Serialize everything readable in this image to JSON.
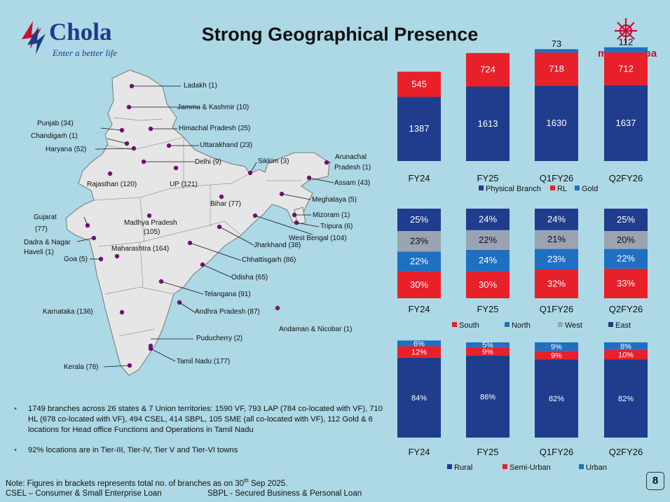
{
  "header": {
    "title": "Strong Geographical Presence",
    "logo_chola": "Chola",
    "logo_chola_tagline": "Enter a better life",
    "logo_murugappa": "murugappa"
  },
  "map": {
    "labels": [
      "Ladakh (1)",
      "Jammu & Kashmir (10)",
      "Punjab (34)",
      "Chandigarh (1)",
      "Haryana (52)",
      "Himachal Pradesh (25)",
      "Uttarakhand (23)",
      "Delhi (9)",
      "Rajasthan (120)",
      "UP (121)",
      "Sikkim (3)",
      "Arunachal",
      "Pradesh (1)",
      "Assam (43)",
      "Meghalaya (5)",
      "Bihar (77)",
      "Gujarat",
      "(77)",
      "Madhya Pradesh",
      "(105)",
      "Mizoram (1)",
      "Tripura (6)",
      "West Bengal (104)",
      "Dadra & Nagar",
      "Haveli (1)",
      "Jharkhand (38)",
      "Maharashtra (164)",
      "Goa (5)",
      "Chhattisgarh (86)",
      "Odisha (65)",
      "Telangana (91)",
      "Andhra Pradesh (87)",
      "Karnataka (136)",
      "Andaman & Nicobar (1)",
      "Puducherry (2)",
      "Tamil Nadu (177)",
      "Kerala (78)"
    ]
  },
  "bullets": [
    "1749 branches across 26 states & 7 Union territories: 1590 VF, 793 LAP (784 co-located with VF), 710 HL (678 co-located with VF), 494 CSEL, 414 SBPL, 105 SME (all co-located with VF), 112 Gold & 6 locations for Head office Functions and Operations in Tamil Nadu",
    "92% locations are in Tier-III, Tier-IV, Tier V and Tier-VI towns"
  ],
  "footer": {
    "note_prefix": "Note: Figures in brackets represents total no. of branches as on 30",
    "note_sup": "th",
    "note_suffix": " Sep 2025.",
    "abbr_csel": "CSEL – Consumer & Small Enterprise Loan",
    "abbr_sbpl": "SBPL - Secured Business & Personal Loan",
    "page_number": "8"
  },
  "colors": {
    "navy": "#1f3d8c",
    "red": "#e8202a",
    "blue": "#1f6fc2",
    "grey": "#9aa3b2"
  },
  "chart_data": [
    {
      "type": "bar",
      "stacked": true,
      "categories": [
        "FY24",
        "FY25",
        "Q1FY26",
        "Q2FY26"
      ],
      "series": [
        {
          "name": "Physical Branch",
          "color": "#1f3d8c",
          "values": [
            1387,
            1613,
            1630,
            1637
          ]
        },
        {
          "name": "RL",
          "color": "#e8202a",
          "values": [
            545,
            724,
            718,
            712
          ]
        },
        {
          "name": "Gold",
          "color": "#1f6fc2",
          "values": [
            0,
            0,
            73,
            112
          ]
        }
      ],
      "labels": [
        [
          "1387",
          "1613",
          "1630",
          "1637"
        ],
        [
          "545",
          "724",
          "718",
          "712"
        ],
        [
          "",
          "",
          "73",
          "112"
        ]
      ],
      "legend": [
        "Physical Branch",
        "RL",
        "Gold"
      ],
      "legend_position": "bottom",
      "ylim": [
        0,
        2500
      ]
    },
    {
      "type": "bar",
      "stacked": true,
      "percent": true,
      "categories": [
        "FY24",
        "FY25",
        "Q1FY26",
        "Q2FY26"
      ],
      "series": [
        {
          "name": "South",
          "color": "#e8202a",
          "values": [
            30,
            30,
            32,
            33
          ]
        },
        {
          "name": "North",
          "color": "#1f6fc2",
          "values": [
            22,
            24,
            23,
            22
          ]
        },
        {
          "name": "West",
          "color": "#9aa3b2",
          "values": [
            23,
            22,
            21,
            20
          ]
        },
        {
          "name": "East",
          "color": "#1f3d8c",
          "values": [
            25,
            24,
            24,
            25
          ]
        }
      ],
      "labels": [
        [
          "30%",
          "30%",
          "32%",
          "33%"
        ],
        [
          "22%",
          "24%",
          "23%",
          "22%"
        ],
        [
          "23%",
          "22%",
          "21%",
          "20%"
        ],
        [
          "25%",
          "24%",
          "24%",
          "25%"
        ]
      ],
      "legend": [
        "South",
        "North",
        "West",
        "East"
      ],
      "legend_position": "bottom"
    },
    {
      "type": "bar",
      "stacked": true,
      "percent": true,
      "categories": [
        "FY24",
        "FY25",
        "Q1FY26",
        "Q2FY26"
      ],
      "series": [
        {
          "name": "Rural",
          "color": "#1f3d8c",
          "values": [
            84,
            86,
            82,
            82
          ]
        },
        {
          "name": "Semi-Urban",
          "color": "#e8202a",
          "values": [
            12,
            9,
            9,
            10
          ]
        },
        {
          "name": "Urban",
          "color": "#1f6fc2",
          "values": [
            6,
            5,
            9,
            8
          ]
        }
      ],
      "labels": [
        [
          "84%",
          "86%",
          "82%",
          "82%"
        ],
        [
          "12%",
          "9%",
          "9%",
          "10%"
        ],
        [
          "6%",
          "5%",
          "9%",
          "8%"
        ]
      ],
      "legend": [
        "Rural",
        "Semi-Urban",
        "Urban"
      ],
      "legend_position": "bottom"
    }
  ]
}
